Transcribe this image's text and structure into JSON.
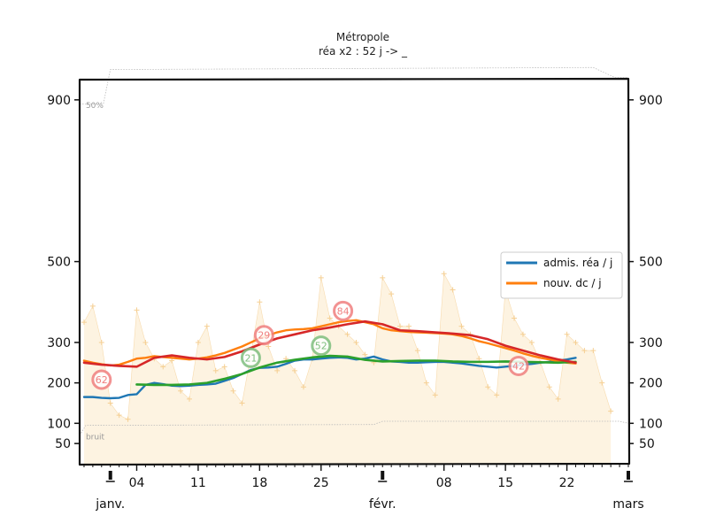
{
  "chart_data": {
    "type": "line",
    "title": "Métropole",
    "subtitle": "réa x2 : 52 j -> _",
    "ylim": [
      0,
      950
    ],
    "yticks": [
      50,
      100,
      200,
      300,
      500,
      900
    ],
    "day_ticks": [
      "04",
      "11",
      "18",
      "25",
      "08",
      "15",
      "22"
    ],
    "day_tick_days": [
      3,
      10,
      17,
      24,
      38,
      45,
      52
    ],
    "month_labels": [
      "janv.",
      "févr.",
      "mars"
    ],
    "month_days": [
      0,
      31,
      59
    ],
    "xlim_days": [
      -3.5,
      59
    ],
    "band_labels": {
      "upper": "50%",
      "lower": "bruit"
    },
    "legend": [
      "admis. réa / j",
      "nouv. dc / j"
    ],
    "colors": {
      "admissions": "#1f77b4",
      "deaths": "#ff7f0e",
      "green": "#2ca02c",
      "red": "#d62728",
      "fill": "#fdf3e1",
      "raw": "#f5cf93"
    },
    "upper_band": [
      [
        -3.5,
        890
      ],
      [
        -0.8,
        890
      ],
      [
        0,
        975
      ],
      [
        55,
        980
      ],
      [
        57.5,
        955
      ],
      [
        59,
        955
      ]
    ],
    "lower_band": [
      [
        -3.5,
        70
      ],
      [
        -2.8,
        95
      ],
      [
        30,
        97
      ],
      [
        31,
        105
      ],
      [
        58,
        105
      ],
      [
        59,
        100
      ]
    ],
    "raw_admissions": [
      [
        -3,
        350
      ],
      [
        -2,
        390
      ],
      [
        -1,
        300
      ],
      [
        0,
        150
      ],
      [
        1,
        120
      ],
      [
        2,
        110
      ],
      [
        3,
        380
      ],
      [
        4,
        300
      ],
      [
        5,
        260
      ],
      [
        6,
        240
      ],
      [
        7,
        255
      ],
      [
        8,
        180
      ],
      [
        9,
        160
      ],
      [
        10,
        300
      ],
      [
        11,
        340
      ],
      [
        12,
        230
      ],
      [
        13,
        240
      ],
      [
        14,
        180
      ],
      [
        15,
        150
      ],
      [
        16,
        270
      ],
      [
        17,
        400
      ],
      [
        18,
        290
      ],
      [
        19,
        230
      ],
      [
        20,
        260
      ],
      [
        21,
        230
      ],
      [
        22,
        190
      ],
      [
        23,
        260
      ],
      [
        24,
        460
      ],
      [
        25,
        360
      ],
      [
        26,
        340
      ],
      [
        27,
        320
      ],
      [
        28,
        300
      ],
      [
        29,
        270
      ],
      [
        30,
        250
      ],
      [
        31,
        460
      ],
      [
        32,
        420
      ],
      [
        33,
        340
      ],
      [
        34,
        340
      ],
      [
        35,
        280
      ],
      [
        36,
        200
      ],
      [
        37,
        170
      ],
      [
        38,
        470
      ],
      [
        39,
        430
      ],
      [
        40,
        340
      ],
      [
        41,
        320
      ],
      [
        42,
        260
      ],
      [
        43,
        190
      ],
      [
        44,
        170
      ],
      [
        45,
        430
      ],
      [
        46,
        360
      ],
      [
        47,
        320
      ],
      [
        48,
        300
      ],
      [
        49,
        250
      ],
      [
        50,
        190
      ],
      [
        51,
        160
      ],
      [
        52,
        320
      ],
      [
        53,
        300
      ],
      [
        54,
        280
      ],
      [
        55,
        280
      ],
      [
        56,
        200
      ],
      [
        57,
        130
      ]
    ],
    "series": [
      {
        "name": "admis. réa / j",
        "color": "#1f77b4",
        "values": [
          [
            -3,
            165
          ],
          [
            -2,
            165
          ],
          [
            -1,
            163
          ],
          [
            0,
            162
          ],
          [
            1,
            163
          ],
          [
            2,
            170
          ],
          [
            3,
            172
          ],
          [
            4,
            195
          ],
          [
            5,
            200
          ],
          [
            6,
            197
          ],
          [
            7,
            193
          ],
          [
            8,
            192
          ],
          [
            9,
            193
          ],
          [
            10,
            195
          ],
          [
            11,
            196
          ],
          [
            12,
            198
          ],
          [
            13,
            205
          ],
          [
            14,
            212
          ],
          [
            15,
            222
          ],
          [
            16,
            232
          ],
          [
            17,
            237
          ],
          [
            18,
            238
          ],
          [
            19,
            240
          ],
          [
            20,
            247
          ],
          [
            21,
            255
          ],
          [
            22,
            258
          ],
          [
            23,
            258
          ],
          [
            24,
            260
          ],
          [
            25,
            262
          ],
          [
            26,
            263
          ],
          [
            27,
            262
          ],
          [
            28,
            258
          ],
          [
            29,
            260
          ],
          [
            30,
            265
          ],
          [
            31,
            258
          ],
          [
            32,
            253
          ],
          [
            33,
            252
          ],
          [
            34,
            250
          ],
          [
            35,
            250
          ],
          [
            36,
            251
          ],
          [
            37,
            252
          ],
          [
            38,
            252
          ],
          [
            39,
            250
          ],
          [
            40,
            248
          ],
          [
            41,
            245
          ],
          [
            42,
            242
          ],
          [
            43,
            240
          ],
          [
            44,
            238
          ],
          [
            45,
            240
          ],
          [
            46,
            242
          ],
          [
            47,
            245
          ],
          [
            48,
            247
          ],
          [
            49,
            250
          ],
          [
            50,
            252
          ],
          [
            51,
            255
          ],
          [
            52,
            258
          ],
          [
            53,
            262
          ]
        ]
      },
      {
        "name": "nouv. dc / j",
        "color": "#ff7f0e",
        "values": [
          [
            -3,
            255
          ],
          [
            -2,
            250
          ],
          [
            -1,
            246
          ],
          [
            0,
            243
          ],
          [
            1,
            245
          ],
          [
            2,
            252
          ],
          [
            3,
            260
          ],
          [
            4,
            262
          ],
          [
            5,
            266
          ],
          [
            6,
            264
          ],
          [
            7,
            262
          ],
          [
            8,
            260
          ],
          [
            9,
            258
          ],
          [
            10,
            260
          ],
          [
            11,
            263
          ],
          [
            12,
            268
          ],
          [
            13,
            274
          ],
          [
            14,
            282
          ],
          [
            15,
            290
          ],
          [
            16,
            300
          ],
          [
            17,
            310
          ],
          [
            18,
            318
          ],
          [
            19,
            325
          ],
          [
            20,
            330
          ],
          [
            21,
            332
          ],
          [
            22,
            333
          ],
          [
            23,
            335
          ],
          [
            24,
            340
          ],
          [
            25,
            345
          ],
          [
            26,
            350
          ],
          [
            27,
            353
          ],
          [
            28,
            355
          ],
          [
            29,
            350
          ],
          [
            30,
            345
          ],
          [
            31,
            335
          ],
          [
            32,
            330
          ],
          [
            33,
            328
          ],
          [
            34,
            326
          ],
          [
            35,
            325
          ],
          [
            36,
            324
          ],
          [
            37,
            323
          ],
          [
            38,
            322
          ],
          [
            39,
            320
          ],
          [
            40,
            316
          ],
          [
            41,
            310
          ],
          [
            42,
            303
          ],
          [
            43,
            298
          ],
          [
            44,
            292
          ],
          [
            45,
            286
          ],
          [
            46,
            280
          ],
          [
            47,
            273
          ],
          [
            48,
            267
          ],
          [
            49,
            262
          ],
          [
            50,
            258
          ],
          [
            51,
            254
          ],
          [
            52,
            250
          ],
          [
            53,
            248
          ]
        ]
      },
      {
        "name": "trend-green",
        "color": "#2ca02c",
        "values": [
          [
            3,
            196
          ],
          [
            5,
            195
          ],
          [
            7,
            195
          ],
          [
            9,
            196
          ],
          [
            11,
            200
          ],
          [
            13,
            210
          ],
          [
            15,
            222
          ],
          [
            17,
            238
          ],
          [
            19,
            250
          ],
          [
            21,
            257
          ],
          [
            23,
            263
          ],
          [
            25,
            267
          ],
          [
            27,
            265
          ],
          [
            29,
            257
          ],
          [
            31,
            253
          ],
          [
            33,
            254
          ],
          [
            35,
            255
          ],
          [
            37,
            255
          ],
          [
            39,
            253
          ],
          [
            41,
            252
          ],
          [
            43,
            252
          ],
          [
            45,
            253
          ],
          [
            47,
            252
          ],
          [
            49,
            251
          ],
          [
            51,
            250
          ],
          [
            53,
            252
          ]
        ]
      },
      {
        "name": "trend-red",
        "color": "#d62728",
        "values": [
          [
            -3,
            250
          ],
          [
            -1,
            245
          ],
          [
            1,
            242
          ],
          [
            3,
            240
          ],
          [
            5,
            262
          ],
          [
            7,
            268
          ],
          [
            9,
            262
          ],
          [
            11,
            258
          ],
          [
            13,
            264
          ],
          [
            15,
            278
          ],
          [
            17,
            295
          ],
          [
            19,
            310
          ],
          [
            21,
            320
          ],
          [
            23,
            330
          ],
          [
            25,
            337
          ],
          [
            27,
            345
          ],
          [
            29,
            352
          ],
          [
            31,
            345
          ],
          [
            33,
            330
          ],
          [
            35,
            328
          ],
          [
            37,
            325
          ],
          [
            39,
            322
          ],
          [
            41,
            318
          ],
          [
            43,
            308
          ],
          [
            45,
            292
          ],
          [
            47,
            280
          ],
          [
            49,
            268
          ],
          [
            51,
            258
          ],
          [
            53,
            250
          ]
        ]
      }
    ],
    "annotations": [
      {
        "label": "62",
        "day": -1,
        "value": 208,
        "color": "#f08080"
      },
      {
        "label": "21",
        "day": 16,
        "value": 262,
        "color": "#7fbf7f"
      },
      {
        "label": "29",
        "day": 17.5,
        "value": 318,
        "color": "#f08080"
      },
      {
        "label": "52",
        "day": 24,
        "value": 292,
        "color": "#7fbf7f"
      },
      {
        "label": "84",
        "day": 26.5,
        "value": 378,
        "color": "#f08080"
      },
      {
        "label": "42",
        "day": 46.5,
        "value": 242,
        "color": "#f08080"
      }
    ]
  }
}
